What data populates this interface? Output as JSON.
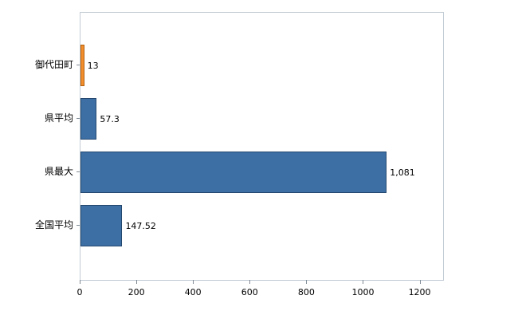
{
  "chart_data": {
    "type": "bar",
    "orientation": "horizontal",
    "title": "",
    "xlabel": "",
    "ylabel": "",
    "categories": [
      "御代田町",
      "県平均",
      "県最大",
      "全国平均"
    ],
    "values": [
      13,
      57.3,
      1081,
      147.52
    ],
    "value_labels": [
      "13",
      "57.3",
      "1,081",
      "147.52"
    ],
    "bar_colors": [
      "#f28e2b",
      "#3d6fa5",
      "#3d6fa5",
      "#3d6fa5"
    ],
    "bar_border_colors": [
      "#b05f10",
      "#24486f",
      "#24486f",
      "#24486f"
    ],
    "x_ticks": [
      0,
      200,
      400,
      600,
      800,
      1000,
      1200
    ],
    "x_tick_labels": [
      "0",
      "200",
      "400",
      "600",
      "800",
      "1000",
      "1200"
    ],
    "xlim": [
      0,
      1280
    ],
    "grid": false,
    "legend": "none",
    "plot_border_color": "#c3ccd4",
    "background_color": "#ffffff"
  }
}
